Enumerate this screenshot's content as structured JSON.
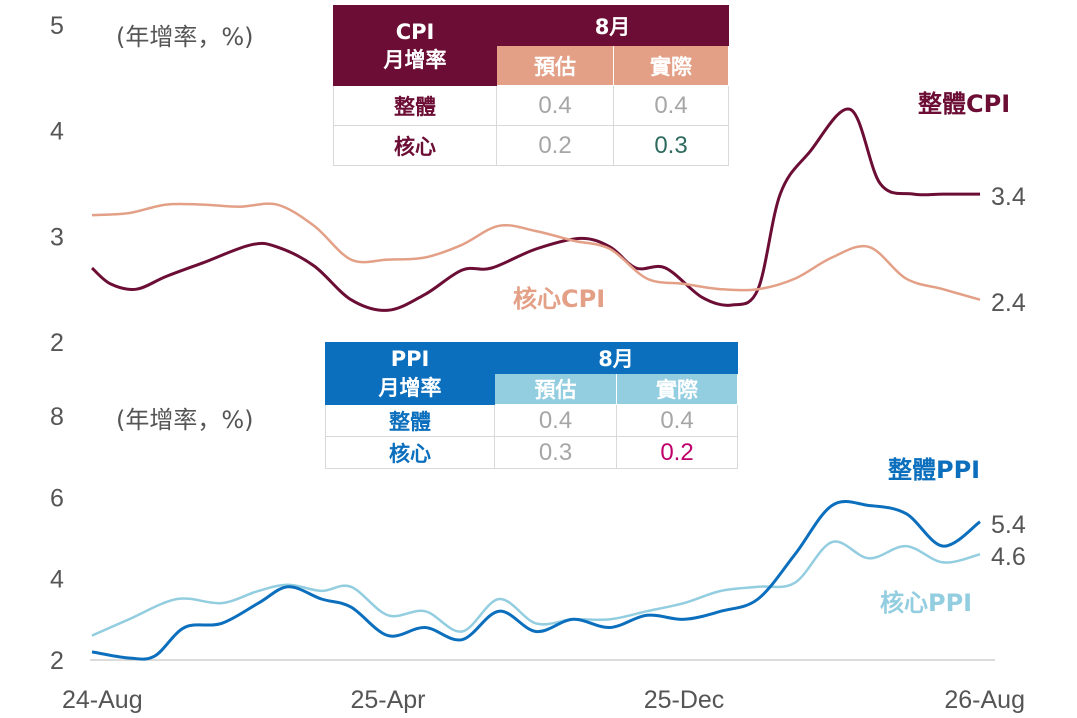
{
  "chart_data": [
    {
      "type": "line",
      "unit_label": "(年增率，%)",
      "ylim": [
        2,
        5
      ],
      "yticks": [
        "5",
        "4",
        "3",
        "2"
      ],
      "x_range": [
        "2024-08",
        "2026-08"
      ],
      "series": [
        {
          "name": "整體CPI",
          "color": "#6b0d34",
          "end_label": "3.4",
          "points": [
            [
              0,
              2.7
            ],
            [
              0.5,
              2.55
            ],
            [
              1.2,
              2.5
            ],
            [
              2.0,
              2.62
            ],
            [
              3.0,
              2.75
            ],
            [
              4.3,
              2.92
            ],
            [
              5.0,
              2.9
            ],
            [
              6.0,
              2.72
            ],
            [
              7.0,
              2.4
            ],
            [
              8.0,
              2.3
            ],
            [
              9.0,
              2.45
            ],
            [
              10.0,
              2.68
            ],
            [
              10.8,
              2.7
            ],
            [
              12.0,
              2.88
            ],
            [
              13.2,
              2.98
            ],
            [
              14.0,
              2.9
            ],
            [
              14.7,
              2.7
            ],
            [
              15.5,
              2.7
            ],
            [
              16.5,
              2.42
            ],
            [
              17.3,
              2.35
            ],
            [
              18.0,
              2.5
            ],
            [
              18.6,
              3.4
            ],
            [
              19.4,
              3.8
            ],
            [
              20.5,
              4.2
            ],
            [
              21.3,
              3.5
            ],
            [
              22.2,
              3.4
            ],
            [
              23.0,
              3.4
            ],
            [
              24.0,
              3.4
            ]
          ]
        },
        {
          "name": "核心CPI",
          "color": "#e3a087",
          "end_label": "2.4",
          "points": [
            [
              0,
              3.2
            ],
            [
              1.0,
              3.22
            ],
            [
              2.0,
              3.3
            ],
            [
              3.0,
              3.3
            ],
            [
              4.0,
              3.28
            ],
            [
              5.0,
              3.3
            ],
            [
              6.0,
              3.1
            ],
            [
              7.0,
              2.78
            ],
            [
              8.0,
              2.78
            ],
            [
              9.0,
              2.8
            ],
            [
              10.0,
              2.92
            ],
            [
              11.0,
              3.1
            ],
            [
              12.0,
              3.05
            ],
            [
              13.0,
              2.96
            ],
            [
              14.0,
              2.88
            ],
            [
              15.0,
              2.6
            ],
            [
              16.0,
              2.55
            ],
            [
              17.0,
              2.5
            ],
            [
              18.0,
              2.5
            ],
            [
              19.0,
              2.6
            ],
            [
              20.0,
              2.8
            ],
            [
              21.0,
              2.9
            ],
            [
              22.0,
              2.6
            ],
            [
              23.0,
              2.5
            ],
            [
              24.0,
              2.4
            ]
          ]
        }
      ]
    },
    {
      "type": "line",
      "unit_label": "(年增率，%)",
      "ylim": [
        2,
        8
      ],
      "yticks": [
        "8",
        "6",
        "4",
        "2"
      ],
      "x_range": [
        "2024-08",
        "2026-08"
      ],
      "xticks": [
        "24-Aug",
        "25-Apr",
        "25-Dec",
        "26-Aug"
      ],
      "series": [
        {
          "name": "整體PPI",
          "color": "#0b6fbd",
          "end_label": "5.4",
          "points": [
            [
              0,
              2.2
            ],
            [
              1.0,
              2.05
            ],
            [
              1.7,
              2.1
            ],
            [
              2.5,
              2.8
            ],
            [
              3.5,
              2.9
            ],
            [
              4.5,
              3.4
            ],
            [
              5.3,
              3.8
            ],
            [
              6.2,
              3.5
            ],
            [
              7.0,
              3.3
            ],
            [
              8.0,
              2.6
            ],
            [
              9.0,
              2.8
            ],
            [
              10.0,
              2.5
            ],
            [
              11.0,
              3.2
            ],
            [
              12.0,
              2.7
            ],
            [
              13.0,
              3.0
            ],
            [
              14.0,
              2.8
            ],
            [
              15.0,
              3.1
            ],
            [
              16.0,
              3.0
            ],
            [
              17.0,
              3.2
            ],
            [
              18.0,
              3.5
            ],
            [
              19.0,
              4.6
            ],
            [
              20.0,
              5.8
            ],
            [
              21.0,
              5.8
            ],
            [
              22.0,
              5.6
            ],
            [
              23.0,
              4.8
            ],
            [
              24.0,
              5.4
            ]
          ]
        },
        {
          "name": "核心PPI",
          "color": "#93cde0",
          "end_label": "4.6",
          "points": [
            [
              0,
              2.6
            ],
            [
              1.0,
              3.0
            ],
            [
              2.3,
              3.5
            ],
            [
              3.5,
              3.4
            ],
            [
              4.5,
              3.7
            ],
            [
              5.3,
              3.85
            ],
            [
              6.2,
              3.7
            ],
            [
              7.0,
              3.8
            ],
            [
              8.0,
              3.1
            ],
            [
              9.0,
              3.2
            ],
            [
              10.0,
              2.7
            ],
            [
              11.0,
              3.5
            ],
            [
              12.0,
              2.9
            ],
            [
              13.0,
              3.0
            ],
            [
              14.0,
              3.0
            ],
            [
              15.0,
              3.2
            ],
            [
              16.0,
              3.4
            ],
            [
              17.0,
              3.7
            ],
            [
              18.0,
              3.8
            ],
            [
              19.0,
              3.9
            ],
            [
              20.0,
              4.9
            ],
            [
              21.0,
              4.5
            ],
            [
              22.0,
              4.8
            ],
            [
              23.0,
              4.4
            ],
            [
              24.0,
              4.6
            ]
          ]
        }
      ]
    }
  ],
  "tables": {
    "cpi": {
      "title_line1": "CPI",
      "title_line2": "月增率",
      "month": "8月",
      "col_forecast": "預估",
      "col_actual": "實際",
      "rows": [
        {
          "label": "整體",
          "forecast": "0.4",
          "actual": "0.4",
          "actual_color": "#a6a6a6"
        },
        {
          "label": "核心",
          "forecast": "0.2",
          "actual": "0.3",
          "actual_color": "#2e6b5e"
        }
      ]
    },
    "ppi": {
      "title_line1": "PPI",
      "title_line2": "月增率",
      "month": "8月",
      "col_forecast": "預估",
      "col_actual": "實際",
      "rows": [
        {
          "label": "整體",
          "forecast": "0.4",
          "actual": "0.4",
          "actual_color": "#a6a6a6"
        },
        {
          "label": "核心",
          "forecast": "0.3",
          "actual": "0.2",
          "actual_color": "#c0006a"
        }
      ]
    }
  }
}
